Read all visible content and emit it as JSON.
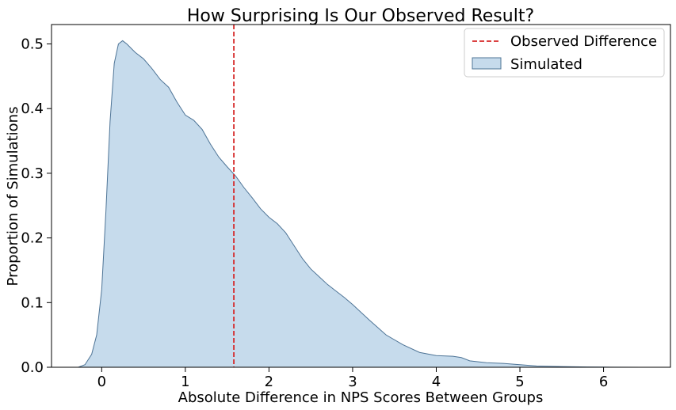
{
  "chart_data": {
    "type": "area",
    "title": "How Surprising Is Our Observed Result?",
    "xlabel": "Absolute Difference in NPS Scores Between Groups",
    "ylabel": "Proportion of Simulations",
    "xlim": [
      -0.6,
      6.8
    ],
    "ylim": [
      0.0,
      0.53
    ],
    "xticks": [
      "0",
      "1",
      "2",
      "3",
      "4",
      "5",
      "6"
    ],
    "yticks": [
      "0.0",
      "0.1",
      "0.2",
      "0.3",
      "0.4",
      "0.5"
    ],
    "grid": false,
    "legend_position": "top-right",
    "series": [
      {
        "name": "Simulated",
        "fill_color": "#c6dbec",
        "line_color": "#4e7496",
        "x": [
          -0.28,
          -0.2,
          -0.12,
          -0.06,
          0.0,
          0.05,
          0.1,
          0.15,
          0.2,
          0.25,
          0.3,
          0.4,
          0.5,
          0.6,
          0.7,
          0.8,
          0.9,
          1.0,
          1.1,
          1.2,
          1.3,
          1.4,
          1.5,
          1.6,
          1.7,
          1.8,
          1.9,
          2.0,
          2.1,
          2.2,
          2.3,
          2.4,
          2.5,
          2.6,
          2.7,
          2.8,
          2.9,
          3.0,
          3.2,
          3.4,
          3.6,
          3.8,
          4.0,
          4.2,
          4.3,
          4.4,
          4.6,
          4.8,
          5.0,
          5.2,
          5.5,
          5.8,
          6.1,
          6.45
        ],
        "y": [
          0.0,
          0.004,
          0.02,
          0.05,
          0.12,
          0.24,
          0.38,
          0.47,
          0.5,
          0.505,
          0.5,
          0.487,
          0.477,
          0.462,
          0.445,
          0.433,
          0.41,
          0.39,
          0.382,
          0.368,
          0.345,
          0.325,
          0.31,
          0.296,
          0.278,
          0.262,
          0.245,
          0.232,
          0.222,
          0.208,
          0.188,
          0.168,
          0.152,
          0.14,
          0.128,
          0.118,
          0.108,
          0.097,
          0.073,
          0.05,
          0.035,
          0.023,
          0.018,
          0.017,
          0.015,
          0.01,
          0.007,
          0.006,
          0.004,
          0.002,
          0.001,
          0.0005,
          0.0002,
          0.0
        ]
      }
    ],
    "reference_lines": [
      {
        "name": "Observed Difference",
        "orientation": "vertical",
        "x": 1.58,
        "color": "#d62728",
        "style": "dashed"
      }
    ]
  }
}
